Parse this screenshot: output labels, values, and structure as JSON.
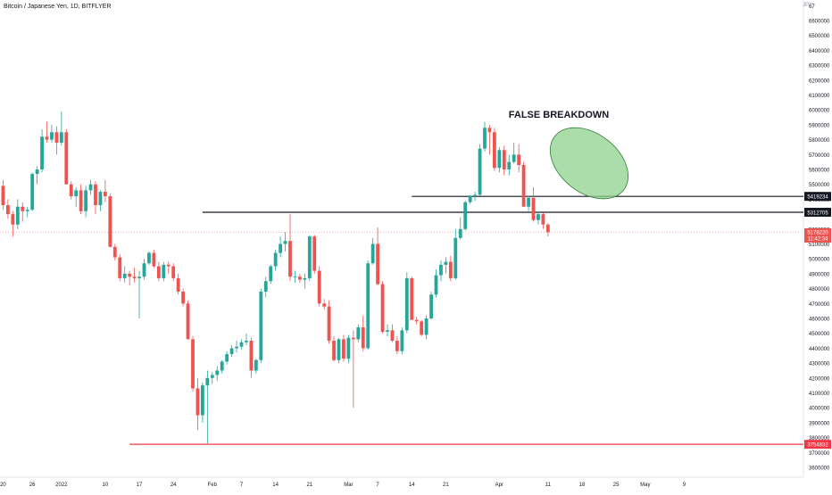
{
  "header": {
    "symbol_title": "Bitcoin / Japanese Yen, 1D, BITFLYER",
    "currency": "JPY"
  },
  "colors": {
    "up": "#26a69a",
    "down": "#ef5350",
    "background": "#ffffff",
    "axis_text": "#131722",
    "annotation_fill": "#8fd18f",
    "annotation_stroke": "#2e7d32",
    "support_line": "#f23645",
    "resistance_line": "#131722"
  },
  "chart_data": {
    "type": "candlestick",
    "y_range": [
      3550000,
      6750000
    ],
    "y_ticks": [
      3600000,
      3700000,
      3800000,
      3900000,
      4000000,
      4100000,
      4200000,
      4300000,
      4400000,
      4500000,
      4600000,
      4700000,
      4800000,
      4900000,
      5000000,
      5100000,
      5200000,
      5300000,
      5400000,
      5500000,
      5600000,
      5700000,
      5800000,
      5900000,
      6000000,
      6100000,
      6200000,
      6300000,
      6400000,
      6500000,
      6600000
    ],
    "y_top_tick_partial": "67",
    "x_ticks": [
      {
        "label": "20",
        "day": -12
      },
      {
        "label": "26",
        "day": -6
      },
      {
        "label": "2022",
        "day": 0
      },
      {
        "label": "10",
        "day": 9
      },
      {
        "label": "17",
        "day": 16
      },
      {
        "label": "24",
        "day": 23
      },
      {
        "label": "Feb",
        "day": 31
      },
      {
        "label": "7",
        "day": 37
      },
      {
        "label": "14",
        "day": 44
      },
      {
        "label": "21",
        "day": 51
      },
      {
        "label": "Mar",
        "day": 59
      },
      {
        "label": "7",
        "day": 65
      },
      {
        "label": "14",
        "day": 72
      },
      {
        "label": "21",
        "day": 79
      },
      {
        "label": "Apr",
        "day": 90
      },
      {
        "label": "11",
        "day": 100
      },
      {
        "label": "18",
        "day": 107
      },
      {
        "label": "25",
        "day": 114
      },
      {
        "label": "May",
        "day": 120
      },
      {
        "label": "9",
        "day": 128
      }
    ],
    "candles": [
      [
        5630000,
        5650000,
        5450000,
        5490000
      ],
      [
        5490000,
        5530000,
        5330000,
        5360000
      ],
      [
        5360000,
        5400000,
        5270000,
        5300000
      ],
      [
        5300000,
        5320000,
        5150000,
        5230000
      ],
      [
        5230000,
        5400000,
        5200000,
        5350000
      ],
      [
        5350000,
        5380000,
        5250000,
        5320000
      ],
      [
        5320000,
        5350000,
        5280000,
        5330000
      ],
      [
        5330000,
        5580000,
        5320000,
        5570000
      ],
      [
        5570000,
        5620000,
        5500000,
        5600000
      ],
      [
        5600000,
        5870000,
        5580000,
        5820000
      ],
      [
        5820000,
        5920000,
        5780000,
        5800000
      ],
      [
        5800000,
        5900000,
        5780000,
        5850000
      ],
      [
        5850000,
        5890000,
        5700000,
        5780000
      ],
      [
        5780000,
        5990000,
        5760000,
        5850000
      ],
      [
        5850000,
        5870000,
        5500000,
        5500000
      ],
      [
        5500000,
        5520000,
        5400000,
        5420000
      ],
      [
        5420000,
        5480000,
        5350000,
        5460000
      ],
      [
        5460000,
        5500000,
        5300000,
        5320000
      ],
      [
        5320000,
        5490000,
        5280000,
        5460000
      ],
      [
        5460000,
        5530000,
        5430000,
        5500000
      ],
      [
        5500000,
        5520000,
        5300000,
        5360000
      ],
      [
        5360000,
        5460000,
        5320000,
        5450000
      ],
      [
        5450000,
        5530000,
        5380000,
        5420000
      ],
      [
        5420000,
        5440000,
        5080000,
        5080000
      ],
      [
        5080000,
        5100000,
        4990000,
        5010000
      ],
      [
        5010000,
        5030000,
        4850000,
        4870000
      ],
      [
        4870000,
        4950000,
        4840000,
        4900000
      ],
      [
        4900000,
        4920000,
        4820000,
        4880000
      ],
      [
        4880000,
        4940000,
        4840000,
        4870000
      ],
      [
        4870000,
        4920000,
        4600000,
        4880000
      ],
      [
        4880000,
        5000000,
        4860000,
        4970000
      ],
      [
        4970000,
        5050000,
        4960000,
        5040000
      ],
      [
        5040000,
        5060000,
        4940000,
        4950000
      ],
      [
        4950000,
        4980000,
        4850000,
        4870000
      ],
      [
        4870000,
        4980000,
        4850000,
        4960000
      ],
      [
        4960000,
        4980000,
        4900000,
        4950000
      ],
      [
        4950000,
        4970000,
        4850000,
        4870000
      ],
      [
        4870000,
        4900000,
        4760000,
        4780000
      ],
      [
        4780000,
        4800000,
        4680000,
        4700000
      ],
      [
        4700000,
        4720000,
        4460000,
        4460000
      ],
      [
        4460000,
        4480000,
        4110000,
        4130000
      ],
      [
        4130000,
        4200000,
        3850000,
        3950000
      ],
      [
        3950000,
        4170000,
        3900000,
        4150000
      ],
      [
        4150000,
        4250000,
        3760000,
        4200000
      ],
      [
        4200000,
        4240000,
        4160000,
        4220000
      ],
      [
        4220000,
        4280000,
        4180000,
        4250000
      ],
      [
        4250000,
        4320000,
        4230000,
        4310000
      ],
      [
        4310000,
        4380000,
        4290000,
        4360000
      ],
      [
        4360000,
        4420000,
        4340000,
        4400000
      ],
      [
        4400000,
        4450000,
        4370000,
        4410000
      ],
      [
        4410000,
        4460000,
        4390000,
        4440000
      ],
      [
        4440000,
        4500000,
        4420000,
        4450000
      ],
      [
        4450000,
        4470000,
        4200000,
        4250000
      ],
      [
        4250000,
        4330000,
        4230000,
        4320000
      ],
      [
        4320000,
        4800000,
        4300000,
        4780000
      ],
      [
        4780000,
        4880000,
        4740000,
        4850000
      ],
      [
        4850000,
        4960000,
        4830000,
        4950000
      ],
      [
        4950000,
        5060000,
        4920000,
        5040000
      ],
      [
        5040000,
        5150000,
        5010000,
        5100000
      ],
      [
        5100000,
        5180000,
        5050000,
        5120000
      ],
      [
        5120000,
        5300000,
        4850000,
        4880000
      ],
      [
        4880000,
        4920000,
        4840000,
        4880000
      ],
      [
        4880000,
        4900000,
        4840000,
        4860000
      ],
      [
        4860000,
        4900000,
        4800000,
        4870000
      ],
      [
        4870000,
        5160000,
        4850000,
        5150000
      ],
      [
        5150000,
        5160000,
        4900000,
        4920000
      ],
      [
        4920000,
        4950000,
        4680000,
        4700000
      ],
      [
        4700000,
        4730000,
        4660000,
        4680000
      ],
      [
        4680000,
        4720000,
        4430000,
        4450000
      ],
      [
        4450000,
        4480000,
        4310000,
        4320000
      ],
      [
        4320000,
        4470000,
        4300000,
        4460000
      ],
      [
        4460000,
        4490000,
        4310000,
        4330000
      ],
      [
        4330000,
        4490000,
        4300000,
        4470000
      ],
      [
        4470000,
        4520000,
        4000000,
        4460000
      ],
      [
        4460000,
        4560000,
        4440000,
        4540000
      ],
      [
        4540000,
        4620000,
        4380000,
        4400000
      ],
      [
        4400000,
        4990000,
        4390000,
        4970000
      ],
      [
        4970000,
        5140000,
        4960000,
        5100000
      ],
      [
        5100000,
        5210000,
        4820000,
        4830000
      ],
      [
        4830000,
        4850000,
        4500000,
        4510000
      ],
      [
        4510000,
        4560000,
        4480000,
        4520000
      ],
      [
        4520000,
        4560000,
        4440000,
        4450000
      ],
      [
        4450000,
        4480000,
        4360000,
        4380000
      ],
      [
        4380000,
        4540000,
        4360000,
        4520000
      ],
      [
        4520000,
        4910000,
        4500000,
        4870000
      ],
      [
        4870000,
        4880000,
        4590000,
        4590000
      ],
      [
        4590000,
        4610000,
        4560000,
        4580000
      ],
      [
        4580000,
        4590000,
        4480000,
        4490000
      ],
      [
        4490000,
        4620000,
        4460000,
        4600000
      ],
      [
        4600000,
        4780000,
        4590000,
        4760000
      ],
      [
        4760000,
        4930000,
        4740000,
        4890000
      ],
      [
        4890000,
        4990000,
        4850000,
        4960000
      ],
      [
        4960000,
        5010000,
        4900000,
        4980000
      ],
      [
        4980000,
        5020000,
        4850000,
        4870000
      ],
      [
        4870000,
        5200000,
        4860000,
        5140000
      ],
      [
        5140000,
        5280000,
        5130000,
        5200000
      ],
      [
        5200000,
        5390000,
        5190000,
        5380000
      ],
      [
        5380000,
        5430000,
        5370000,
        5420000
      ],
      [
        5420000,
        5450000,
        5390000,
        5430000
      ],
      [
        5430000,
        5770000,
        5420000,
        5740000
      ],
      [
        5740000,
        5920000,
        5720000,
        5880000
      ],
      [
        5880000,
        5900000,
        5700000,
        5850000
      ],
      [
        5850000,
        5880000,
        5590000,
        5610000
      ],
      [
        5610000,
        5750000,
        5580000,
        5730000
      ],
      [
        5730000,
        5760000,
        5560000,
        5600000
      ],
      [
        5600000,
        5700000,
        5560000,
        5650000
      ],
      [
        5650000,
        5780000,
        5640000,
        5700000
      ],
      [
        5700000,
        5770000,
        5580000,
        5630000
      ],
      [
        5630000,
        5650000,
        5350000,
        5350000
      ],
      [
        5350000,
        5420000,
        5320000,
        5410000
      ],
      [
        5410000,
        5480000,
        5250000,
        5260000
      ],
      [
        5260000,
        5320000,
        5230000,
        5300000
      ],
      [
        5300000,
        5310000,
        5200000,
        5230000
      ],
      [
        5230000,
        5240000,
        5150000,
        5178220
      ]
    ],
    "horizontal_lines": [
      {
        "price": 5419234,
        "label": "5419234",
        "color": "#131722",
        "start_day": 72
      },
      {
        "price": 5312705,
        "label": "5312705",
        "color": "#131722",
        "start_day": 29
      },
      {
        "price": 3754832,
        "label": "3754832",
        "color": "#f23645",
        "start_day": 14
      }
    ],
    "last_price": {
      "label": "5178220",
      "countdown": "11:42:34",
      "color": "#ef5350"
    },
    "annotation": {
      "text": "FALSE BREAKDOWN",
      "shape": "ellipse"
    }
  }
}
